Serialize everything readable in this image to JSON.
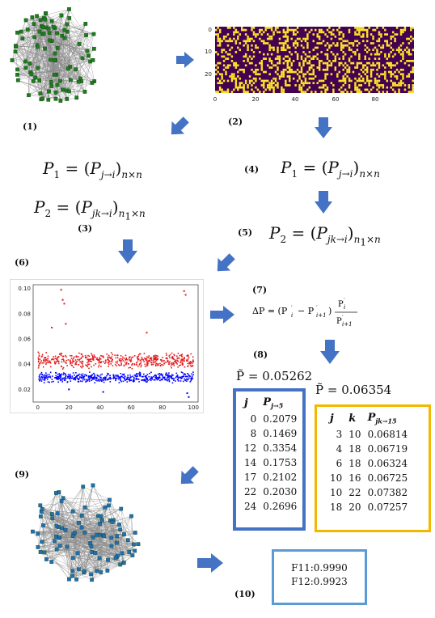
{
  "steps": {
    "s1": "(1)",
    "s2": "(2)",
    "s3": "(3)",
    "s4": "(4)",
    "s5": "(5)",
    "s6": "(6)",
    "s7": "(7)",
    "s8": "(8)",
    "s9": "(9)",
    "s10": "(10)"
  },
  "formulas": {
    "p1": "P₁ = (P_{j→i})_{n×n}",
    "p2": "P₂ = (P_{jk→i})_{n₁×n}",
    "delta": "ΔP = (P'ᵢ − P'ᵢ₊₁) P'ᵢ / P'ᵢ₊₁"
  },
  "colors": {
    "node_green": "#1f7a1f",
    "node_blue": "#1f6fb2",
    "arrow": "#4472c4",
    "red_series": "#e41a1c",
    "blue_series": "#0000ff",
    "box_blue": "#4472c4",
    "box_gold": "#f2b700",
    "box_light": "#5b9bd5"
  },
  "heatmap": {
    "y_ticks": [
      "0",
      "10",
      "20"
    ],
    "x_ticks": [
      "0",
      "20",
      "40",
      "60",
      "80"
    ],
    "colors": [
      "#440154",
      "#fde725"
    ]
  },
  "chart_data": {
    "type": "scatter",
    "x_ticks": [
      "0",
      "20",
      "40",
      "60",
      "80",
      "100"
    ],
    "y_ticks": [
      "0.02",
      "0.04",
      "0.06",
      "0.08",
      "0.10"
    ],
    "xlim": [
      -3,
      103
    ],
    "ylim": [
      0.01,
      0.103
    ],
    "series": [
      {
        "color": "#e41a1c",
        "typical_range": [
          0.036,
          0.05
        ],
        "outliers": [
          [
            15,
            0.099
          ],
          [
            16,
            0.091
          ],
          [
            17,
            0.088
          ],
          [
            94,
            0.098
          ],
          [
            95,
            0.095
          ],
          [
            18,
            0.072
          ],
          [
            9,
            0.069
          ],
          [
            70,
            0.065
          ]
        ]
      },
      {
        "color": "#0000ff",
        "typical_range": [
          0.025,
          0.034
        ],
        "outliers": [
          [
            97,
            0.014
          ],
          [
            96,
            0.017
          ],
          [
            42,
            0.018
          ],
          [
            20,
            0.02
          ]
        ]
      }
    ]
  },
  "table1": {
    "ptilde": "P̃ = 0.05262",
    "head_j": "j",
    "head_p": "P",
    "head_sub": "j→5",
    "rows": [
      [
        "0",
        "0.2079"
      ],
      [
        "8",
        "0.1469"
      ],
      [
        "12",
        "0.3354"
      ],
      [
        "14",
        "0.1753"
      ],
      [
        "17",
        "0.2102"
      ],
      [
        "22",
        "0.2030"
      ],
      [
        "24",
        "0.2696"
      ]
    ]
  },
  "table2": {
    "ptilde": "P̃ = 0.06354",
    "head_j": "j",
    "head_k": "k",
    "head_p": "P",
    "head_sub": "jk→15",
    "rows": [
      [
        "3",
        "10",
        "0.06814"
      ],
      [
        "4",
        "18",
        "0.06719"
      ],
      [
        "6",
        "18",
        "0.06324"
      ],
      [
        "10",
        "16",
        "0.06725"
      ],
      [
        "10",
        "22",
        "0.07382"
      ],
      [
        "18",
        "20",
        "0.07257"
      ]
    ]
  },
  "scores": {
    "f11": "F11:0.9990",
    "f12": "F12:0.9923"
  }
}
